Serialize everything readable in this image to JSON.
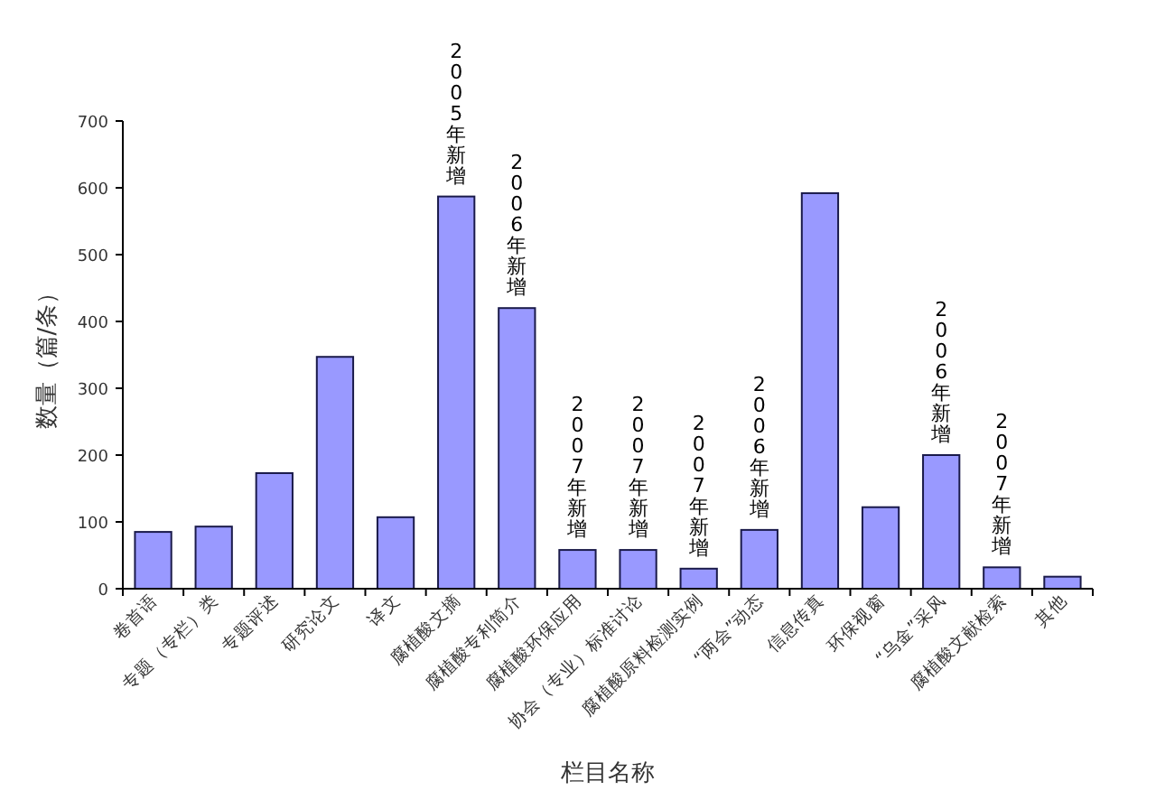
{
  "chart_data": {
    "type": "bar",
    "xlabel": "栏目名称",
    "ylabel": "数量（篇/条）",
    "categories": [
      "卷首语",
      "专题（专栏）类",
      "专题评述",
      "研究论文",
      "译文",
      "腐植酸文摘",
      "腐植酸专利简介",
      "腐植酸环保应用",
      "协会（专业）标准讨论",
      "腐植酸原料检测实例",
      "“两会”动态",
      "信息传真",
      "环保视窗",
      "“乌金”采风",
      "腐植酸文献检索",
      "其他"
    ],
    "values": [
      85,
      93,
      173,
      347,
      107,
      587,
      420,
      58,
      58,
      30,
      88,
      592,
      122,
      200,
      32,
      18
    ],
    "color": "#9999ff",
    "ylim": [
      0,
      700
    ],
    "yticks": [
      0,
      100,
      200,
      300,
      400,
      500,
      600,
      700
    ],
    "grid": false,
    "annotations": [
      {
        "text": "2005年新增",
        "x": "腐植酸文摘",
        "y": 587
      },
      {
        "text": "2006年新增",
        "x": "腐植酸专利简介",
        "y": 420
      },
      {
        "text": "2007年新增",
        "x": "腐植酸环保应用",
        "y": 58
      },
      {
        "text": "2007年新增",
        "x": "协会（专业）标准讨论",
        "y": 58
      },
      {
        "text": "2007年新增",
        "x": "腐植酸原料检测实例",
        "y": 30
      },
      {
        "text": "2006年新增",
        "x": "“两会”动态",
        "y": 88
      },
      {
        "text": "2006年新增",
        "x": "“乌金”采风",
        "y": 200
      },
      {
        "text": "2007年新增",
        "x": "腐植酸文献检索",
        "y": 32
      }
    ]
  }
}
